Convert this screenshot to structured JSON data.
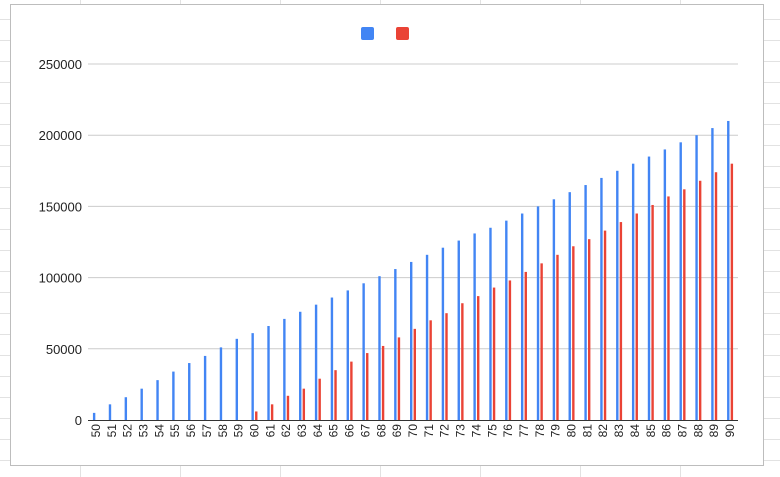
{
  "chart_data": {
    "type": "bar",
    "title": "",
    "xlabel": "",
    "ylabel": "",
    "legend_position": "top-center",
    "grid": true,
    "ylim": [
      0,
      250000
    ],
    "y_ticks": [
      "0",
      "50000",
      "100000",
      "150000",
      "200000",
      "250000"
    ],
    "categories": [
      "50",
      "51",
      "52",
      "53",
      "54",
      "55",
      "56",
      "57",
      "58",
      "59",
      "60",
      "61",
      "62",
      "63",
      "64",
      "65",
      "66",
      "67",
      "68",
      "69",
      "70",
      "71",
      "72",
      "73",
      "74",
      "75",
      "76",
      "77",
      "78",
      "79",
      "80",
      "81",
      "82",
      "83",
      "84",
      "85",
      "86",
      "87",
      "88",
      "89",
      "90"
    ],
    "series": [
      {
        "color": "#4285f4",
        "values": [
          5000,
          11000,
          16000,
          22000,
          28000,
          34000,
          40000,
          45000,
          51000,
          57000,
          61000,
          66000,
          71000,
          76000,
          81000,
          86000,
          91000,
          96000,
          101000,
          106000,
          111000,
          116000,
          121000,
          126000,
          131000,
          135000,
          140000,
          145000,
          150000,
          155000,
          160000,
          165000,
          170000,
          175000,
          180000,
          185000,
          190000,
          195000,
          200000,
          205000,
          210000
        ]
      },
      {
        "color": "#ea4335",
        "values": [
          0,
          0,
          0,
          0,
          0,
          0,
          0,
          0,
          0,
          0,
          6000,
          11000,
          17000,
          22000,
          29000,
          35000,
          41000,
          47000,
          52000,
          58000,
          64000,
          70000,
          75000,
          82000,
          87000,
          93000,
          98000,
          104000,
          110000,
          116000,
          122000,
          127000,
          133000,
          139000,
          145000,
          151000,
          157000,
          162000,
          168000,
          174000,
          180000
        ]
      }
    ]
  }
}
